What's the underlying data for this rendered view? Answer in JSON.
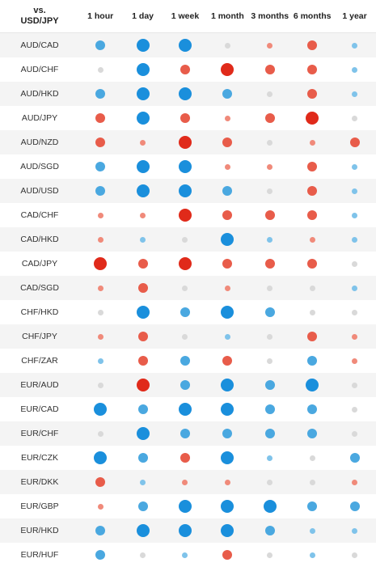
{
  "header": {
    "pair_label_top": "vs.",
    "pair_label_bottom": "USD/JPY",
    "columns": [
      "1 hour",
      "1 day",
      "1 week",
      "1 month",
      "3 months",
      "6 months",
      "1 year"
    ]
  },
  "colors": {
    "strong_blue": "#1a8fdc",
    "blue": "#4aa8e0",
    "light_blue": "#7fc3ea",
    "neutral": "#d9d9d9",
    "light_red": "#f08a7a",
    "red": "#e85c4a",
    "strong_red": "#e02a1a"
  },
  "rows": [
    {
      "pair": "AUD/CAD",
      "cells": [
        [
          "b",
          3
        ],
        [
          "sb",
          4
        ],
        [
          "sb",
          4
        ],
        [
          "n",
          2
        ],
        [
          "lr",
          2
        ],
        [
          "r",
          3
        ],
        [
          "lb",
          2
        ]
      ]
    },
    {
      "pair": "AUD/CHF",
      "cells": [
        [
          "n",
          2
        ],
        [
          "sb",
          4
        ],
        [
          "r",
          3
        ],
        [
          "sr",
          4
        ],
        [
          "r",
          3
        ],
        [
          "r",
          3
        ],
        [
          "lb",
          2
        ]
      ]
    },
    {
      "pair": "AUD/HKD",
      "cells": [
        [
          "b",
          3
        ],
        [
          "sb",
          4
        ],
        [
          "sb",
          4
        ],
        [
          "b",
          3
        ],
        [
          "n",
          2
        ],
        [
          "r",
          3
        ],
        [
          "lb",
          2
        ]
      ]
    },
    {
      "pair": "AUD/JPY",
      "cells": [
        [
          "r",
          3
        ],
        [
          "sb",
          4
        ],
        [
          "r",
          3
        ],
        [
          "lr",
          2
        ],
        [
          "r",
          3
        ],
        [
          "sr",
          4
        ],
        [
          "n",
          2
        ]
      ]
    },
    {
      "pair": "AUD/NZD",
      "cells": [
        [
          "r",
          3
        ],
        [
          "lr",
          2
        ],
        [
          "sr",
          4
        ],
        [
          "r",
          3
        ],
        [
          "n",
          2
        ],
        [
          "lr",
          2
        ],
        [
          "r",
          3
        ]
      ]
    },
    {
      "pair": "AUD/SGD",
      "cells": [
        [
          "b",
          3
        ],
        [
          "sb",
          4
        ],
        [
          "sb",
          4
        ],
        [
          "lr",
          2
        ],
        [
          "lr",
          2
        ],
        [
          "r",
          3
        ],
        [
          "lb",
          2
        ]
      ]
    },
    {
      "pair": "AUD/USD",
      "cells": [
        [
          "b",
          3
        ],
        [
          "sb",
          4
        ],
        [
          "sb",
          4
        ],
        [
          "b",
          3
        ],
        [
          "n",
          2
        ],
        [
          "r",
          3
        ],
        [
          "lb",
          2
        ]
      ]
    },
    {
      "pair": "CAD/CHF",
      "cells": [
        [
          "lr",
          2
        ],
        [
          "lr",
          2
        ],
        [
          "sr",
          4
        ],
        [
          "r",
          3
        ],
        [
          "r",
          3
        ],
        [
          "r",
          3
        ],
        [
          "lb",
          2
        ]
      ]
    },
    {
      "pair": "CAD/HKD",
      "cells": [
        [
          "lr",
          2
        ],
        [
          "lb",
          2
        ],
        [
          "n",
          2
        ],
        [
          "sb",
          4
        ],
        [
          "lb",
          2
        ],
        [
          "lr",
          2
        ],
        [
          "lb",
          2
        ]
      ]
    },
    {
      "pair": "CAD/JPY",
      "cells": [
        [
          "sr",
          4
        ],
        [
          "r",
          3
        ],
        [
          "sr",
          4
        ],
        [
          "r",
          3
        ],
        [
          "r",
          3
        ],
        [
          "r",
          3
        ],
        [
          "n",
          2
        ]
      ]
    },
    {
      "pair": "CAD/SGD",
      "cells": [
        [
          "lr",
          2
        ],
        [
          "r",
          3
        ],
        [
          "n",
          2
        ],
        [
          "lr",
          2
        ],
        [
          "n",
          2
        ],
        [
          "n",
          2
        ],
        [
          "lb",
          2
        ]
      ]
    },
    {
      "pair": "CHF/HKD",
      "cells": [
        [
          "n",
          2
        ],
        [
          "sb",
          4
        ],
        [
          "b",
          3
        ],
        [
          "sb",
          4
        ],
        [
          "b",
          3
        ],
        [
          "n",
          2
        ],
        [
          "n",
          2
        ]
      ]
    },
    {
      "pair": "CHF/JPY",
      "cells": [
        [
          "lr",
          2
        ],
        [
          "r",
          3
        ],
        [
          "n",
          2
        ],
        [
          "lb",
          2
        ],
        [
          "n",
          2
        ],
        [
          "r",
          3
        ],
        [
          "lr",
          2
        ]
      ]
    },
    {
      "pair": "CHF/ZAR",
      "cells": [
        [
          "lb",
          2
        ],
        [
          "r",
          3
        ],
        [
          "b",
          3
        ],
        [
          "r",
          3
        ],
        [
          "n",
          2
        ],
        [
          "b",
          3
        ],
        [
          "lr",
          2
        ]
      ]
    },
    {
      "pair": "EUR/AUD",
      "cells": [
        [
          "n",
          2
        ],
        [
          "sr",
          4
        ],
        [
          "b",
          3
        ],
        [
          "sb",
          4
        ],
        [
          "b",
          3
        ],
        [
          "sb",
          4
        ],
        [
          "n",
          2
        ]
      ]
    },
    {
      "pair": "EUR/CAD",
      "cells": [
        [
          "sb",
          4
        ],
        [
          "b",
          3
        ],
        [
          "sb",
          4
        ],
        [
          "sb",
          4
        ],
        [
          "b",
          3
        ],
        [
          "b",
          3
        ],
        [
          "n",
          2
        ]
      ]
    },
    {
      "pair": "EUR/CHF",
      "cells": [
        [
          "n",
          2
        ],
        [
          "sb",
          4
        ],
        [
          "b",
          3
        ],
        [
          "b",
          3
        ],
        [
          "b",
          3
        ],
        [
          "b",
          3
        ],
        [
          "n",
          2
        ]
      ]
    },
    {
      "pair": "EUR/CZK",
      "cells": [
        [
          "sb",
          4
        ],
        [
          "b",
          3
        ],
        [
          "r",
          3
        ],
        [
          "sb",
          4
        ],
        [
          "lb",
          2
        ],
        [
          "n",
          2
        ],
        [
          "b",
          3
        ]
      ]
    },
    {
      "pair": "EUR/DKK",
      "cells": [
        [
          "r",
          3
        ],
        [
          "lb",
          2
        ],
        [
          "lr",
          2
        ],
        [
          "lr",
          2
        ],
        [
          "n",
          2
        ],
        [
          "n",
          2
        ],
        [
          "lr",
          2
        ]
      ]
    },
    {
      "pair": "EUR/GBP",
      "cells": [
        [
          "lr",
          2
        ],
        [
          "b",
          3
        ],
        [
          "sb",
          4
        ],
        [
          "sb",
          4
        ],
        [
          "sb",
          4
        ],
        [
          "b",
          3
        ],
        [
          "b",
          3
        ]
      ]
    },
    {
      "pair": "EUR/HKD",
      "cells": [
        [
          "b",
          3
        ],
        [
          "sb",
          4
        ],
        [
          "sb",
          4
        ],
        [
          "sb",
          4
        ],
        [
          "b",
          3
        ],
        [
          "lb",
          2
        ],
        [
          "lb",
          2
        ]
      ]
    },
    {
      "pair": "EUR/HUF",
      "cells": [
        [
          "b",
          3
        ],
        [
          "n",
          2
        ],
        [
          "lb",
          2
        ],
        [
          "r",
          3
        ],
        [
          "n",
          2
        ],
        [
          "lb",
          2
        ],
        [
          "n",
          2
        ]
      ]
    }
  ]
}
